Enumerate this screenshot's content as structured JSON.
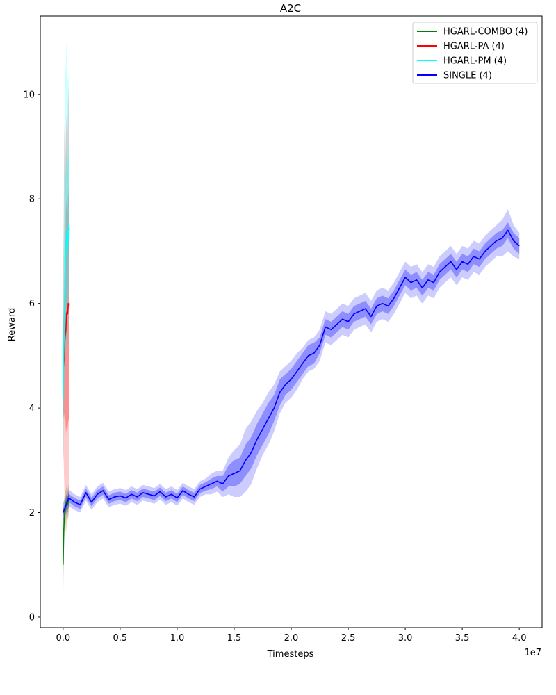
{
  "chart_data": {
    "type": "line",
    "title": "A2C",
    "xlabel": "Timesteps",
    "ylabel": "Reward",
    "x_offset_text": "1e7",
    "xlim": [
      -0.2,
      4.2
    ],
    "ylim": [
      -0.2,
      11.5
    ],
    "xticks": [
      0.0,
      0.5,
      1.0,
      1.5,
      2.0,
      2.5,
      3.0,
      3.5,
      4.0
    ],
    "xtick_labels": [
      "0.0",
      "0.5",
      "1.0",
      "1.5",
      "2.0",
      "2.5",
      "3.0",
      "3.5",
      "4.0"
    ],
    "yticks": [
      0,
      2,
      4,
      6,
      8,
      10
    ],
    "ytick_labels": [
      "0",
      "2",
      "4",
      "6",
      "8",
      "10"
    ],
    "grid": false,
    "legend_position": "top-right",
    "series": [
      {
        "name": "HGARL-COMBO (4)",
        "color": "#008000",
        "x": [
          0.0,
          0.005,
          0.01,
          0.02,
          0.03,
          0.04,
          0.05
        ],
        "y": [
          1.0,
          1.6,
          1.9,
          2.1,
          2.2,
          2.15,
          2.25
        ],
        "inner_band": [
          [
            0.6,
            1.4
          ],
          [
            1.3,
            1.9
          ],
          [
            1.7,
            2.1
          ],
          [
            1.95,
            2.25
          ],
          [
            2.05,
            2.35
          ],
          [
            2.0,
            2.3
          ],
          [
            2.1,
            2.4
          ]
        ],
        "outer_band": [
          [
            0.3,
            1.8
          ],
          [
            1.0,
            2.2
          ],
          [
            1.5,
            2.3
          ],
          [
            1.8,
            2.4
          ],
          [
            1.9,
            2.5
          ],
          [
            1.85,
            2.45
          ],
          [
            1.95,
            2.55
          ]
        ]
      },
      {
        "name": "HGARL-PA (4)",
        "color": "#ff0000",
        "x": [
          0.0,
          0.005,
          0.01,
          0.015,
          0.02,
          0.025,
          0.03,
          0.035,
          0.04,
          0.045,
          0.05,
          0.055
        ],
        "y": [
          4.9,
          4.8,
          5.0,
          5.3,
          5.4,
          5.5,
          5.8,
          5.85,
          5.8,
          6.0,
          5.95,
          6.0
        ],
        "inner_band": [
          [
            4.0,
            5.6
          ],
          [
            3.8,
            5.8
          ],
          [
            3.9,
            6.2
          ],
          [
            3.6,
            7.0
          ],
          [
            3.8,
            7.2
          ],
          [
            3.5,
            7.8
          ],
          [
            3.6,
            8.0
          ],
          [
            3.7,
            7.6
          ],
          [
            3.6,
            7.8
          ],
          [
            3.8,
            8.2
          ],
          [
            3.7,
            8.0
          ],
          [
            3.9,
            8.0
          ]
        ],
        "outer_band": [
          [
            3.2,
            6.6
          ],
          [
            3.0,
            7.5
          ],
          [
            2.5,
            9.5
          ],
          [
            2.0,
            9.0
          ],
          [
            1.8,
            8.8
          ],
          [
            1.6,
            9.2
          ],
          [
            1.7,
            9.6
          ],
          [
            2.0,
            9.0
          ],
          [
            1.9,
            9.4
          ],
          [
            2.0,
            10.1
          ],
          [
            2.1,
            9.8
          ],
          [
            2.2,
            10.1
          ]
        ]
      },
      {
        "name": "HGARL-PM (4)",
        "color": "#00ffff",
        "x": [
          0.0,
          0.005,
          0.01,
          0.015,
          0.02,
          0.025,
          0.03,
          0.035,
          0.04,
          0.045,
          0.05,
          0.055
        ],
        "y": [
          4.2,
          5.0,
          5.6,
          6.3,
          6.8,
          7.0,
          7.2,
          7.4,
          7.1,
          7.3,
          7.5,
          7.4
        ],
        "inner_band": [
          [
            3.6,
            5.0
          ],
          [
            4.0,
            6.2
          ],
          [
            4.5,
            7.0
          ],
          [
            5.0,
            7.8
          ],
          [
            5.6,
            8.4
          ],
          [
            5.8,
            8.6
          ],
          [
            6.0,
            9.0
          ],
          [
            6.2,
            9.2
          ],
          [
            6.0,
            8.6
          ],
          [
            6.2,
            8.8
          ],
          [
            6.4,
            9.0
          ],
          [
            6.3,
            8.8
          ]
        ],
        "outer_band": [
          [
            2.9,
            6.0
          ],
          [
            3.3,
            7.6
          ],
          [
            3.9,
            8.8
          ],
          [
            4.3,
            9.8
          ],
          [
            4.8,
            10.4
          ],
          [
            5.0,
            10.6
          ],
          [
            5.2,
            11.0
          ],
          [
            5.4,
            10.8
          ],
          [
            5.2,
            10.2
          ],
          [
            5.4,
            10.5
          ],
          [
            5.6,
            10.0
          ],
          [
            5.5,
            9.8
          ]
        ]
      },
      {
        "name": "SINGLE (4)",
        "color": "#0000ff",
        "x": [
          0.0,
          0.05,
          0.1,
          0.15,
          0.2,
          0.25,
          0.3,
          0.35,
          0.4,
          0.45,
          0.5,
          0.55,
          0.6,
          0.65,
          0.7,
          0.75,
          0.8,
          0.85,
          0.9,
          0.95,
          1.0,
          1.05,
          1.1,
          1.15,
          1.2,
          1.25,
          1.3,
          1.35,
          1.4,
          1.45,
          1.5,
          1.55,
          1.6,
          1.65,
          1.7,
          1.75,
          1.8,
          1.85,
          1.9,
          1.95,
          2.0,
          2.05,
          2.1,
          2.15,
          2.2,
          2.25,
          2.3,
          2.35,
          2.4,
          2.45,
          2.5,
          2.55,
          2.6,
          2.65,
          2.7,
          2.75,
          2.8,
          2.85,
          2.9,
          2.95,
          3.0,
          3.05,
          3.1,
          3.15,
          3.2,
          3.25,
          3.3,
          3.35,
          3.4,
          3.45,
          3.5,
          3.55,
          3.6,
          3.65,
          3.7,
          3.75,
          3.8,
          3.85,
          3.9,
          3.95,
          4.0
        ],
        "y": [
          2.0,
          2.28,
          2.2,
          2.15,
          2.38,
          2.2,
          2.35,
          2.42,
          2.25,
          2.3,
          2.32,
          2.28,
          2.35,
          2.3,
          2.38,
          2.35,
          2.32,
          2.4,
          2.3,
          2.35,
          2.28,
          2.42,
          2.35,
          2.3,
          2.45,
          2.5,
          2.55,
          2.6,
          2.55,
          2.7,
          2.75,
          2.8,
          3.0,
          3.15,
          3.4,
          3.6,
          3.8,
          4.0,
          4.3,
          4.45,
          4.55,
          4.7,
          4.85,
          5.0,
          5.05,
          5.2,
          5.55,
          5.5,
          5.6,
          5.7,
          5.65,
          5.8,
          5.85,
          5.9,
          5.75,
          5.95,
          6.0,
          5.95,
          6.1,
          6.3,
          6.5,
          6.4,
          6.45,
          6.3,
          6.45,
          6.4,
          6.6,
          6.7,
          6.8,
          6.65,
          6.8,
          6.75,
          6.9,
          6.85,
          7.0,
          7.1,
          7.2,
          7.25,
          7.4,
          7.2,
          7.1
        ],
        "spread_inner": [
          0.08,
          0.08,
          0.08,
          0.08,
          0.08,
          0.08,
          0.08,
          0.08,
          0.08,
          0.08,
          0.08,
          0.08,
          0.08,
          0.08,
          0.08,
          0.08,
          0.08,
          0.08,
          0.08,
          0.08,
          0.08,
          0.08,
          0.08,
          0.08,
          0.08,
          0.08,
          0.1,
          0.1,
          0.15,
          0.2,
          0.25,
          0.25,
          0.3,
          0.3,
          0.3,
          0.3,
          0.3,
          0.25,
          0.25,
          0.2,
          0.2,
          0.2,
          0.2,
          0.2,
          0.2,
          0.15,
          0.15,
          0.15,
          0.15,
          0.15,
          0.15,
          0.15,
          0.15,
          0.15,
          0.15,
          0.15,
          0.15,
          0.15,
          0.15,
          0.15,
          0.15,
          0.15,
          0.15,
          0.15,
          0.15,
          0.15,
          0.15,
          0.15,
          0.15,
          0.15,
          0.15,
          0.15,
          0.15,
          0.15,
          0.15,
          0.15,
          0.15,
          0.15,
          0.15,
          0.15,
          0.15
        ],
        "spread_outer": [
          0.18,
          0.16,
          0.15,
          0.15,
          0.15,
          0.15,
          0.15,
          0.15,
          0.15,
          0.15,
          0.15,
          0.15,
          0.15,
          0.15,
          0.15,
          0.15,
          0.15,
          0.15,
          0.15,
          0.15,
          0.15,
          0.15,
          0.15,
          0.15,
          0.15,
          0.15,
          0.2,
          0.2,
          0.25,
          0.35,
          0.45,
          0.5,
          0.6,
          0.6,
          0.55,
          0.5,
          0.5,
          0.45,
          0.4,
          0.35,
          0.35,
          0.35,
          0.3,
          0.3,
          0.3,
          0.3,
          0.3,
          0.3,
          0.3,
          0.3,
          0.3,
          0.3,
          0.3,
          0.3,
          0.3,
          0.3,
          0.3,
          0.3,
          0.3,
          0.3,
          0.3,
          0.3,
          0.3,
          0.3,
          0.3,
          0.3,
          0.3,
          0.3,
          0.3,
          0.3,
          0.3,
          0.3,
          0.3,
          0.3,
          0.3,
          0.3,
          0.3,
          0.35,
          0.4,
          0.3,
          0.25
        ]
      }
    ]
  }
}
